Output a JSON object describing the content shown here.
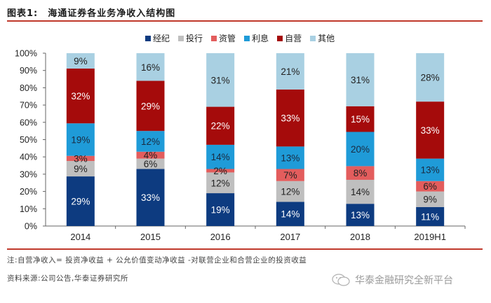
{
  "header": {
    "figure_number": "图表1:",
    "title": "海通证券各业务净收入结构图"
  },
  "chart_data": {
    "type": "bar",
    "stacked": true,
    "title": "海通证券各业务净收入结构图",
    "xlabel": "",
    "ylabel": "",
    "ylim": [
      0,
      100
    ],
    "yticks": [
      "0%",
      "10%",
      "20%",
      "30%",
      "40%",
      "50%",
      "60%",
      "70%",
      "80%",
      "90%",
      "100%"
    ],
    "categories": [
      "2014",
      "2015",
      "2016",
      "2017",
      "2018",
      "2019H1"
    ],
    "legend_position": "top-right",
    "series": [
      {
        "name": "经纪",
        "color": "#0d3b80",
        "label_color": "#ffffff",
        "values": [
          29,
          33,
          19,
          14,
          13,
          11
        ]
      },
      {
        "name": "投行",
        "color": "#bfbfbf",
        "label_color": "#222222",
        "values": [
          9,
          6,
          12,
          12,
          14,
          9
        ]
      },
      {
        "name": "资管",
        "color": "#e35d5d",
        "label_color": "#222222",
        "values": [
          3,
          4,
          2,
          7,
          8,
          6
        ]
      },
      {
        "name": "利息",
        "color": "#1f9bd8",
        "label_color": "#1a2a40",
        "values": [
          19,
          12,
          14,
          13,
          20,
          13
        ]
      },
      {
        "name": "自营",
        "color": "#a50b0b",
        "label_color": "#ffffff",
        "values": [
          32,
          29,
          22,
          33,
          15,
          33
        ]
      },
      {
        "name": "其他",
        "color": "#a9d0e2",
        "label_color": "#222222",
        "values": [
          9,
          16,
          31,
          21,
          31,
          28
        ]
      }
    ]
  },
  "footer": {
    "note": "注:自营净收入= 投资净收益 + 公允价值变动净收益 -对联营企业和合营企业的投资收益",
    "source": "资料来源:公司公告,华泰证券研究所",
    "watermark": "华泰金融研究全新平台"
  }
}
